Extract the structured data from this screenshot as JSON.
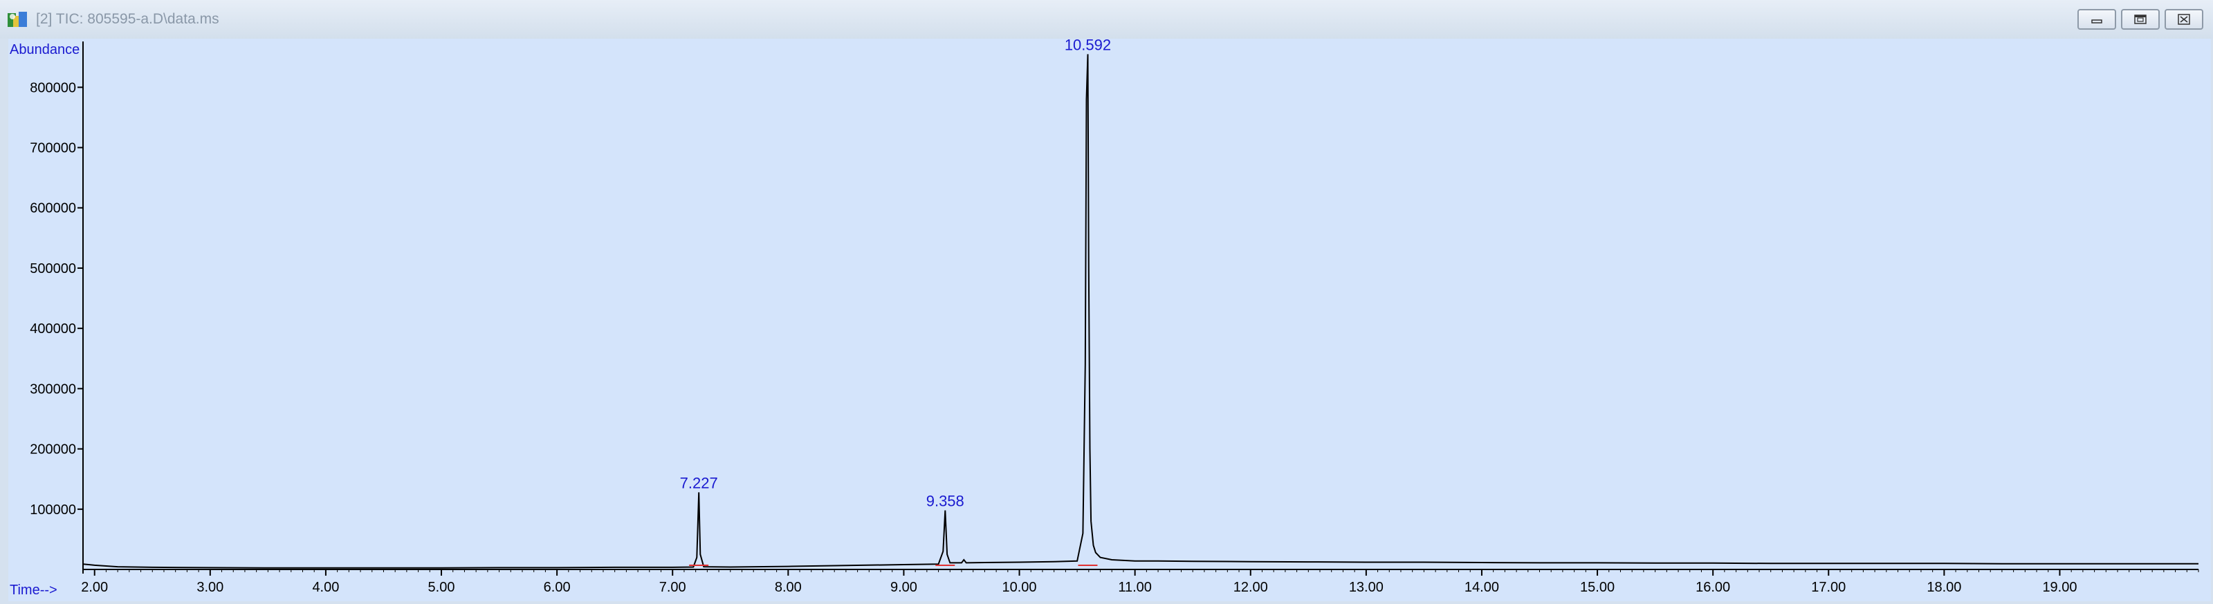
{
  "window": {
    "title": "[2] TIC: 805595-a.D\\data.ms",
    "icon": "chromatogram-app-icon",
    "controls": [
      "minimize-icon",
      "restore-icon",
      "close-icon"
    ]
  },
  "chart_data": {
    "type": "line",
    "title": "",
    "ylabel": "Abundance",
    "xlabel": "Time-->",
    "xlim": [
      1.9,
      20.2
    ],
    "ylim": [
      0,
      860000
    ],
    "grid": false,
    "line_color": "#000000",
    "background_color": "#d4e4fb",
    "x_ticks": [
      2.0,
      3.0,
      4.0,
      5.0,
      6.0,
      7.0,
      8.0,
      9.0,
      10.0,
      11.0,
      12.0,
      13.0,
      14.0,
      15.0,
      16.0,
      17.0,
      18.0,
      19.0
    ],
    "x_tick_labels": [
      "2.00",
      "3.00",
      "4.00",
      "5.00",
      "6.00",
      "7.00",
      "8.00",
      "9.00",
      "10.00",
      "11.00",
      "12.00",
      "13.00",
      "14.00",
      "15.00",
      "16.00",
      "17.00",
      "18.00",
      "19.00"
    ],
    "y_ticks": [
      100000,
      200000,
      300000,
      400000,
      500000,
      600000,
      700000,
      800000
    ],
    "y_tick_labels": [
      "100000",
      "200000",
      "300000",
      "400000",
      "500000",
      "600000",
      "700000",
      "800000"
    ],
    "peaks": [
      {
        "label": "7.227",
        "time": 7.227,
        "abundance": 128000
      },
      {
        "label": "9.358",
        "time": 9.358,
        "abundance": 98000
      },
      {
        "label": "10.592",
        "time": 10.592,
        "abundance": 855000
      }
    ],
    "trace": {
      "x": [
        1.9,
        2.0,
        2.2,
        2.5,
        3.0,
        3.5,
        4.0,
        4.5,
        5.0,
        5.5,
        6.0,
        6.5,
        7.0,
        7.18,
        7.21,
        7.227,
        7.24,
        7.27,
        7.5,
        8.0,
        8.5,
        9.0,
        9.3,
        9.34,
        9.358,
        9.375,
        9.4,
        9.5,
        9.52,
        9.54,
        9.7,
        10.0,
        10.3,
        10.5,
        10.55,
        10.57,
        10.58,
        10.592,
        10.6,
        10.61,
        10.62,
        10.64,
        10.66,
        10.7,
        10.8,
        11.0,
        11.2,
        11.5,
        12.0,
        12.5,
        13.0,
        13.5,
        14.0,
        14.5,
        15.0,
        15.5,
        16.0,
        16.5,
        17.0,
        17.5,
        18.0,
        18.5,
        19.0,
        19.5,
        20.0,
        20.2
      ],
      "y": [
        9000,
        7000,
        4500,
        3500,
        3000,
        2500,
        2500,
        2500,
        2500,
        3000,
        3000,
        3500,
        3500,
        4000,
        20000,
        128000,
        25000,
        4500,
        4000,
        5000,
        6500,
        8000,
        9000,
        30000,
        98000,
        25000,
        11000,
        11000,
        16000,
        11000,
        11500,
        12000,
        13000,
        14000,
        60000,
        340000,
        780000,
        855000,
        500000,
        200000,
        80000,
        40000,
        28000,
        20000,
        16000,
        14000,
        14000,
        13500,
        13000,
        12500,
        12000,
        12000,
        11500,
        11000,
        11000,
        10500,
        10500,
        10000,
        10000,
        10000,
        10000,
        9500,
        9500,
        9500,
        9500,
        9500
      ]
    }
  }
}
